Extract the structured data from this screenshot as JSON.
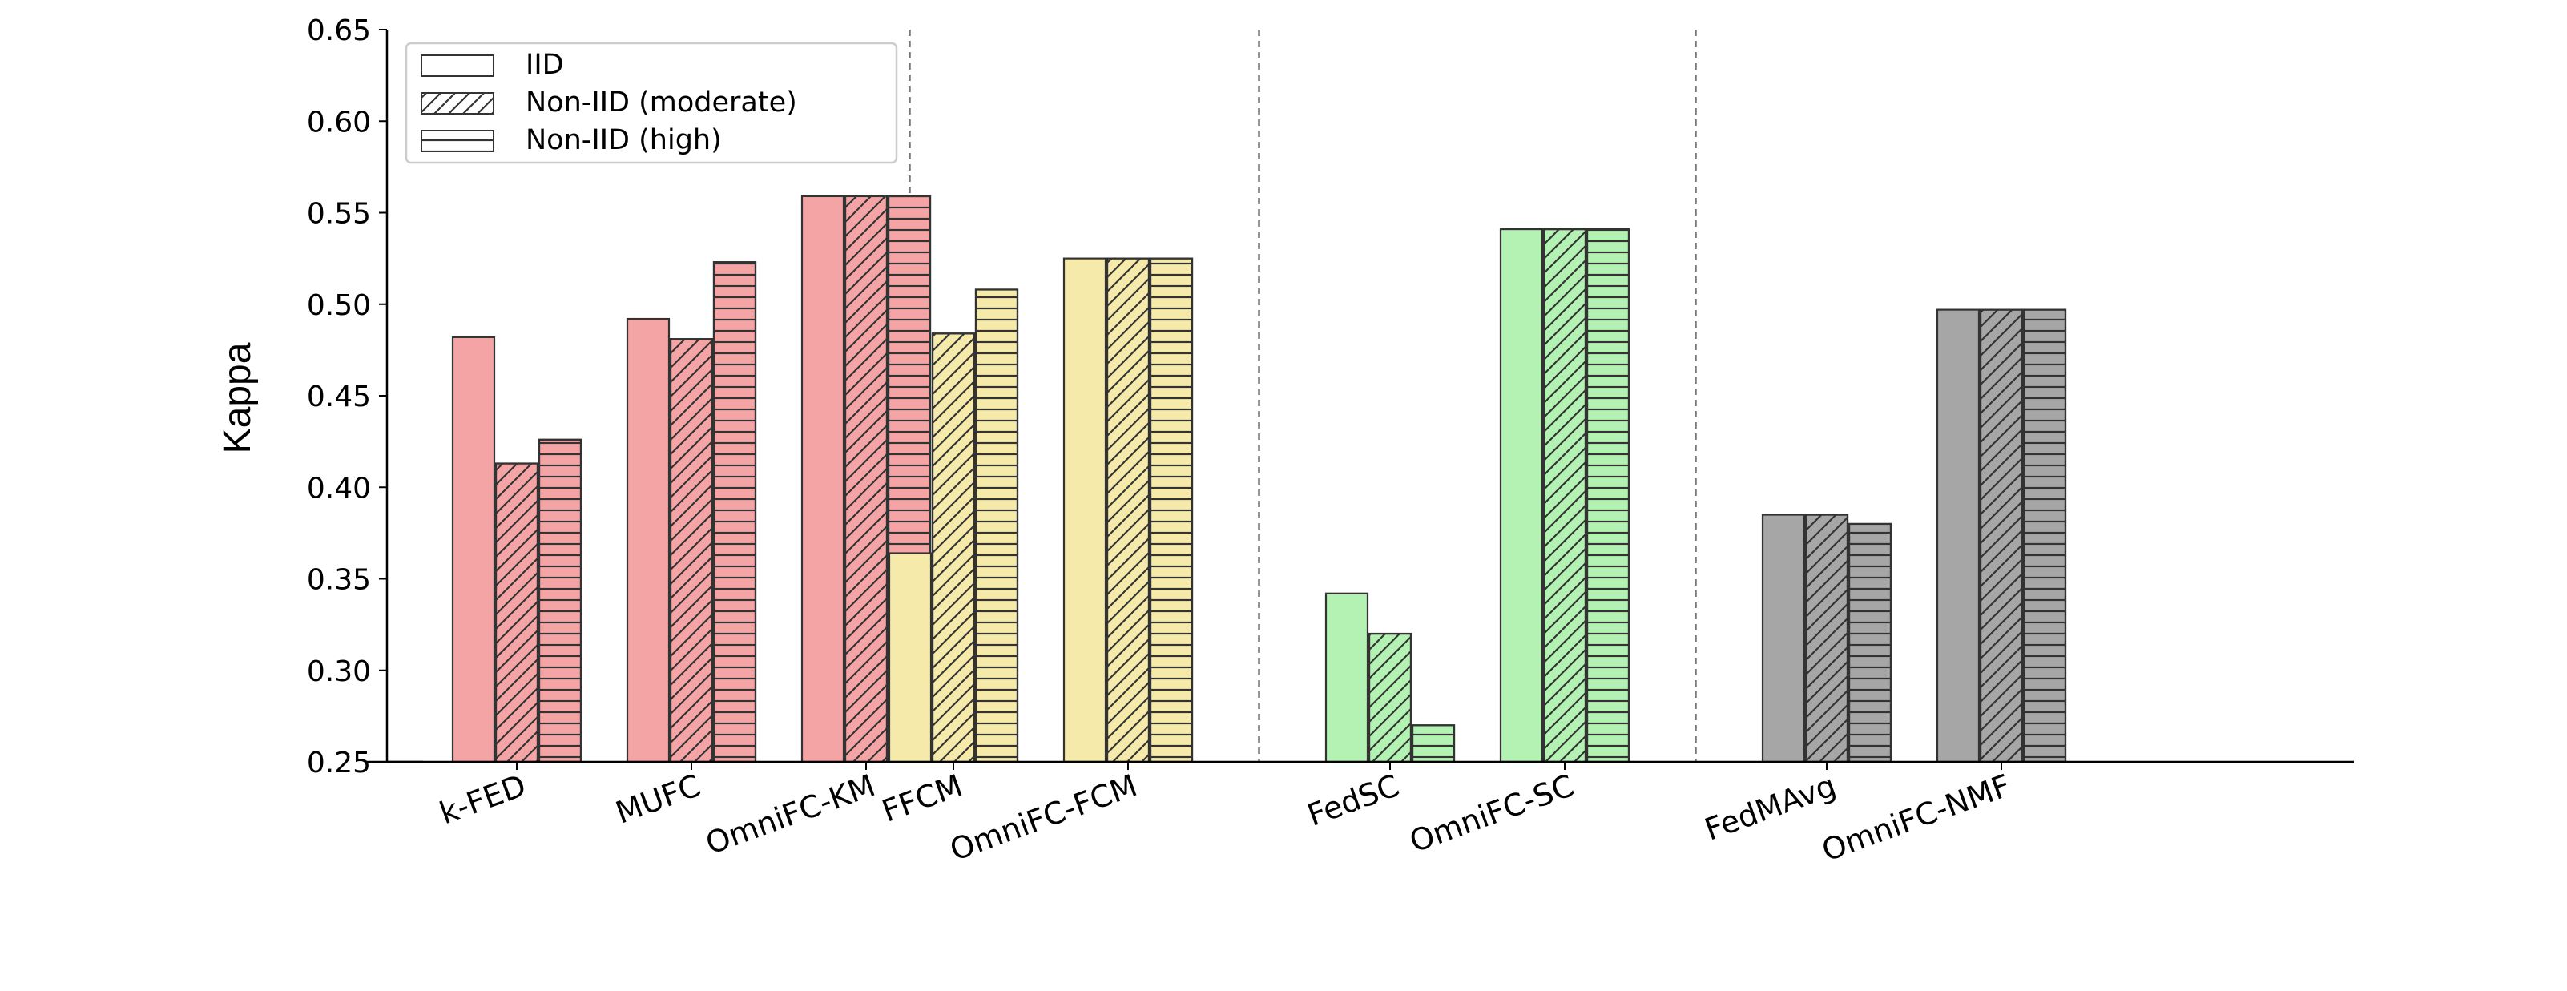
{
  "chart_data": {
    "type": "bar",
    "title": "",
    "xlabel": "",
    "ylabel": "Kappa",
    "ylim": [
      0.25,
      0.65
    ],
    "yticks": [
      "0.25",
      "0.30",
      "0.35",
      "0.40",
      "0.45",
      "0.50",
      "0.55",
      "0.60",
      "0.65"
    ],
    "grid": false,
    "legend_position": "top-left",
    "series": [
      {
        "name": "IID",
        "pattern": "none"
      },
      {
        "name": "Non-IID (moderate)",
        "pattern": "diagonal-hatch"
      },
      {
        "name": "Non-IID (high)",
        "pattern": "horizontal-hatch"
      }
    ],
    "groups": [
      {
        "color": "#f4a4a4",
        "methods": [
          {
            "name": "k-FED",
            "values": [
              0.482,
              0.413,
              0.426
            ]
          },
          {
            "name": "MUFC",
            "values": [
              0.492,
              0.481,
              0.523
            ]
          },
          {
            "name": "OmniFC-KM",
            "values": [
              0.559,
              0.559,
              0.559
            ]
          }
        ]
      },
      {
        "color": "#f5eaaa",
        "methods": [
          {
            "name": "FFCM",
            "values": [
              0.364,
              0.484,
              0.508
            ]
          },
          {
            "name": "OmniFC-FCM",
            "values": [
              0.525,
              0.525,
              0.525
            ]
          }
        ]
      },
      {
        "color": "#b3f2b3",
        "methods": [
          {
            "name": "FedSC",
            "values": [
              0.342,
              0.32,
              0.27
            ]
          },
          {
            "name": "OmniFC-SC",
            "values": [
              0.541,
              0.541,
              0.541
            ]
          }
        ]
      },
      {
        "color": "#a6a6a6",
        "methods": [
          {
            "name": "FedMAvg",
            "values": [
              0.385,
              0.385,
              0.38
            ]
          },
          {
            "name": "OmniFC-NMF",
            "values": [
              0.497,
              0.497,
              0.497
            ]
          }
        ]
      }
    ]
  }
}
